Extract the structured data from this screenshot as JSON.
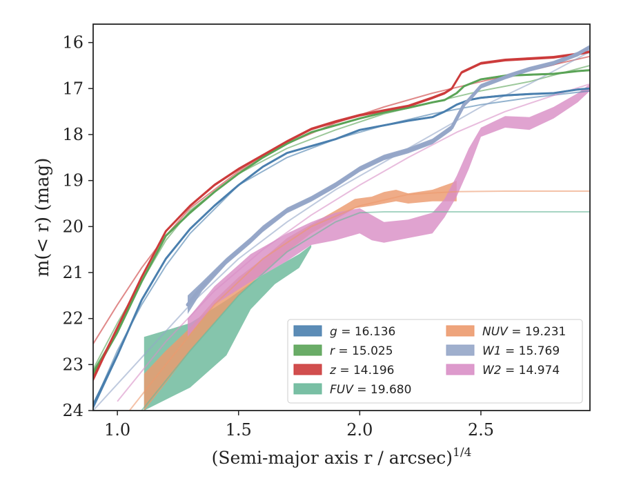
{
  "chart_data": {
    "type": "line",
    "title": "",
    "xlabel": "(Semi-major axis r / arcsec)",
    "xlabel_superscript": "1/4",
    "ylabel": "m(< r) (mag)",
    "xlim": [
      0.9,
      2.95
    ],
    "ylim": [
      24,
      15.6
    ],
    "y_inverted": true,
    "grid": false,
    "legend_position": "lower-right",
    "x_ticks": [
      1.0,
      1.5,
      2.0,
      2.5
    ],
    "x_tick_labels": [
      "1.0",
      "1.5",
      "2.0",
      "2.5"
    ],
    "y_ticks": [
      16,
      17,
      18,
      19,
      20,
      21,
      22,
      23,
      24
    ],
    "y_tick_labels": [
      "16",
      "17",
      "18",
      "19",
      "20",
      "21",
      "22",
      "23",
      "24"
    ],
    "series": [
      {
        "name": "g = 16.136",
        "label": "g",
        "value": "16.136",
        "color": "#4a7fae",
        "data": [
          [
            0.9,
            23.9
          ],
          [
            1.0,
            22.8
          ],
          [
            1.1,
            21.6
          ],
          [
            1.2,
            20.7
          ],
          [
            1.3,
            20.05
          ],
          [
            1.4,
            19.55
          ],
          [
            1.5,
            19.1
          ],
          [
            1.6,
            18.7
          ],
          [
            1.7,
            18.4
          ],
          [
            1.8,
            18.25
          ],
          [
            1.9,
            18.1
          ],
          [
            2.0,
            17.9
          ],
          [
            2.1,
            17.8
          ],
          [
            2.2,
            17.7
          ],
          [
            2.3,
            17.62
          ],
          [
            2.35,
            17.5
          ],
          [
            2.4,
            17.35
          ],
          [
            2.45,
            17.25
          ],
          [
            2.5,
            17.2
          ],
          [
            2.6,
            17.15
          ],
          [
            2.7,
            17.12
          ],
          [
            2.8,
            17.1
          ],
          [
            2.9,
            17.02
          ],
          [
            2.95,
            17.0
          ]
        ],
        "halfwidth": [
          0.08,
          0.05,
          0.04,
          0.03,
          0.03,
          0.02,
          0.02,
          0.02,
          0.02,
          0.02,
          0.02,
          0.02,
          0.02,
          0.02,
          0.02,
          0.02,
          0.02,
          0.02,
          0.02,
          0.02,
          0.02,
          0.02,
          0.02,
          0.02
        ],
        "model": [
          [
            0.9,
            23.9
          ],
          [
            1.0,
            22.7
          ],
          [
            1.1,
            21.7
          ],
          [
            1.2,
            20.85
          ],
          [
            1.3,
            20.15
          ],
          [
            1.5,
            19.1
          ],
          [
            1.7,
            18.5
          ],
          [
            1.9,
            18.1
          ],
          [
            2.1,
            17.8
          ],
          [
            2.3,
            17.55
          ],
          [
            2.5,
            17.35
          ],
          [
            2.7,
            17.2
          ],
          [
            2.95,
            17.05
          ]
        ]
      },
      {
        "name": "r = 15.025",
        "label": "r",
        "value": "15.025",
        "color": "#5aa356",
        "data": [
          [
            0.9,
            23.2
          ],
          [
            1.0,
            22.3
          ],
          [
            1.1,
            21.2
          ],
          [
            1.2,
            20.2
          ],
          [
            1.3,
            19.7
          ],
          [
            1.4,
            19.25
          ],
          [
            1.5,
            18.85
          ],
          [
            1.6,
            18.5
          ],
          [
            1.7,
            18.2
          ],
          [
            1.8,
            17.95
          ],
          [
            1.9,
            17.8
          ],
          [
            2.0,
            17.65
          ],
          [
            2.1,
            17.52
          ],
          [
            2.2,
            17.42
          ],
          [
            2.3,
            17.3
          ],
          [
            2.35,
            17.25
          ],
          [
            2.4,
            17.1
          ],
          [
            2.43,
            16.95
          ],
          [
            2.5,
            16.8
          ],
          [
            2.6,
            16.72
          ],
          [
            2.7,
            16.7
          ],
          [
            2.8,
            16.68
          ],
          [
            2.9,
            16.62
          ],
          [
            2.95,
            16.6
          ]
        ],
        "halfwidth": [
          0.08,
          0.05,
          0.04,
          0.03,
          0.03,
          0.02,
          0.02,
          0.02,
          0.02,
          0.02,
          0.02,
          0.02,
          0.02,
          0.02,
          0.02,
          0.02,
          0.02,
          0.02,
          0.02,
          0.02,
          0.02,
          0.02,
          0.02,
          0.02
        ],
        "model": [
          [
            0.9,
            23.1
          ],
          [
            1.0,
            22.1
          ],
          [
            1.1,
            21.2
          ],
          [
            1.2,
            20.3
          ],
          [
            1.3,
            19.65
          ],
          [
            1.5,
            18.85
          ],
          [
            1.7,
            18.3
          ],
          [
            1.9,
            17.9
          ],
          [
            2.1,
            17.55
          ],
          [
            2.3,
            17.3
          ],
          [
            2.5,
            17.05
          ],
          [
            2.7,
            16.85
          ],
          [
            2.95,
            16.5
          ]
        ]
      },
      {
        "name": "z = 14.196",
        "label": "z",
        "value": "14.196",
        "color": "#cc3b3b",
        "data": [
          [
            0.9,
            23.3
          ],
          [
            1.0,
            22.2
          ],
          [
            1.1,
            21.1
          ],
          [
            1.2,
            20.1
          ],
          [
            1.3,
            19.55
          ],
          [
            1.4,
            19.1
          ],
          [
            1.5,
            18.75
          ],
          [
            1.6,
            18.45
          ],
          [
            1.7,
            18.15
          ],
          [
            1.8,
            17.88
          ],
          [
            1.9,
            17.72
          ],
          [
            2.0,
            17.58
          ],
          [
            2.1,
            17.48
          ],
          [
            2.2,
            17.38
          ],
          [
            2.3,
            17.2
          ],
          [
            2.35,
            17.1
          ],
          [
            2.38,
            17.0
          ],
          [
            2.42,
            16.65
          ],
          [
            2.5,
            16.45
          ],
          [
            2.6,
            16.38
          ],
          [
            2.7,
            16.35
          ],
          [
            2.8,
            16.32
          ],
          [
            2.9,
            16.25
          ],
          [
            2.95,
            16.2
          ]
        ],
        "halfwidth": [
          0.08,
          0.05,
          0.04,
          0.03,
          0.03,
          0.03,
          0.03,
          0.03,
          0.03,
          0.03,
          0.03,
          0.03,
          0.03,
          0.03,
          0.03,
          0.03,
          0.03,
          0.03,
          0.03,
          0.03,
          0.03,
          0.03,
          0.03,
          0.03
        ],
        "model": [
          [
            0.9,
            22.55
          ],
          [
            1.0,
            21.7
          ],
          [
            1.1,
            20.9
          ],
          [
            1.2,
            20.2
          ],
          [
            1.3,
            19.6
          ],
          [
            1.5,
            18.8
          ],
          [
            1.7,
            18.2
          ],
          [
            1.9,
            17.75
          ],
          [
            2.1,
            17.4
          ],
          [
            2.3,
            17.1
          ],
          [
            2.5,
            16.85
          ],
          [
            2.7,
            16.6
          ],
          [
            2.95,
            16.3
          ]
        ]
      },
      {
        "name": "FUV = 19.680",
        "label": "FUV",
        "value": "19.680",
        "color": "#6ab89a",
        "upper": [
          [
            1.11,
            22.4
          ],
          [
            1.3,
            22.1
          ],
          [
            1.45,
            21.6
          ],
          [
            1.6,
            21.05
          ],
          [
            1.75,
            20.6
          ],
          [
            1.8,
            20.4
          ]
        ],
        "lower": [
          [
            1.11,
            24.0
          ],
          [
            1.3,
            23.5
          ],
          [
            1.45,
            22.8
          ],
          [
            1.55,
            21.8
          ],
          [
            1.65,
            21.25
          ],
          [
            1.75,
            20.9
          ],
          [
            1.8,
            20.45
          ]
        ],
        "model": [
          [
            1.1,
            24.0
          ],
          [
            1.3,
            22.7
          ],
          [
            1.5,
            21.5
          ],
          [
            1.7,
            20.55
          ],
          [
            1.9,
            19.9
          ],
          [
            2.0,
            19.7
          ],
          [
            2.1,
            19.68
          ],
          [
            2.5,
            19.68
          ],
          [
            2.95,
            19.68
          ]
        ]
      },
      {
        "name": "NUV = 19.231",
        "label": "NUV",
        "value": "19.231",
        "color": "#ec9a6e",
        "upper": [
          [
            1.11,
            23.2
          ],
          [
            1.2,
            22.7
          ],
          [
            1.3,
            22.2
          ],
          [
            1.4,
            21.6
          ],
          [
            1.5,
            21.1
          ],
          [
            1.6,
            20.7
          ],
          [
            1.7,
            20.25
          ],
          [
            1.8,
            19.95
          ],
          [
            1.9,
            19.65
          ],
          [
            1.98,
            19.4
          ],
          [
            2.05,
            19.35
          ],
          [
            2.1,
            19.25
          ],
          [
            2.15,
            19.2
          ],
          [
            2.2,
            19.28
          ],
          [
            2.3,
            19.2
          ],
          [
            2.38,
            19.05
          ],
          [
            2.4,
            19.0
          ]
        ],
        "lower": [
          [
            1.11,
            24.0
          ],
          [
            1.2,
            23.4
          ],
          [
            1.3,
            22.7
          ],
          [
            1.4,
            22.1
          ],
          [
            1.5,
            21.5
          ],
          [
            1.6,
            21.0
          ],
          [
            1.7,
            20.55
          ],
          [
            1.8,
            20.15
          ],
          [
            1.9,
            19.85
          ],
          [
            1.98,
            19.6
          ],
          [
            2.05,
            19.55
          ],
          [
            2.1,
            19.5
          ],
          [
            2.15,
            19.45
          ],
          [
            2.2,
            19.5
          ],
          [
            2.3,
            19.45
          ],
          [
            2.38,
            19.45
          ],
          [
            2.4,
            19.45
          ]
        ],
        "model": [
          [
            1.05,
            24.0
          ],
          [
            1.2,
            23.0
          ],
          [
            1.4,
            21.7
          ],
          [
            1.6,
            20.7
          ],
          [
            1.8,
            20.0
          ],
          [
            2.0,
            19.55
          ],
          [
            2.2,
            19.3
          ],
          [
            2.4,
            19.24
          ],
          [
            2.6,
            19.23
          ],
          [
            2.95,
            19.23
          ]
        ]
      },
      {
        "name": "W1 = 15.769",
        "label": "W1",
        "value": "15.769",
        "color": "#95a6c8",
        "data": [
          [
            1.29,
            21.7
          ],
          [
            1.35,
            21.3
          ],
          [
            1.45,
            20.75
          ],
          [
            1.55,
            20.3
          ],
          [
            1.6,
            20.05
          ],
          [
            1.7,
            19.65
          ],
          [
            1.8,
            19.4
          ],
          [
            1.9,
            19.1
          ],
          [
            2.0,
            18.75
          ],
          [
            2.1,
            18.5
          ],
          [
            2.2,
            18.35
          ],
          [
            2.3,
            18.15
          ],
          [
            2.38,
            17.85
          ],
          [
            2.43,
            17.35
          ],
          [
            2.45,
            17.25
          ],
          [
            2.5,
            16.95
          ],
          [
            2.6,
            16.75
          ],
          [
            2.7,
            16.58
          ],
          [
            2.8,
            16.45
          ],
          [
            2.9,
            16.25
          ],
          [
            2.95,
            16.1
          ]
        ],
        "halfwidth": [
          0.2,
          0.1,
          0.07,
          0.07,
          0.07,
          0.06,
          0.06,
          0.06,
          0.06,
          0.06,
          0.06,
          0.06,
          0.06,
          0.05,
          0.05,
          0.05,
          0.05,
          0.05,
          0.05,
          0.05,
          0.05
        ],
        "model": [
          [
            0.9,
            24.0
          ],
          [
            1.1,
            22.85
          ],
          [
            1.3,
            21.7
          ],
          [
            1.5,
            20.7
          ],
          [
            1.7,
            19.9
          ],
          [
            1.9,
            19.2
          ],
          [
            2.1,
            18.6
          ],
          [
            2.3,
            18.0
          ],
          [
            2.5,
            17.4
          ],
          [
            2.7,
            16.9
          ],
          [
            2.95,
            16.2
          ]
        ]
      },
      {
        "name": "W2 = 14.974",
        "label": "W2",
        "value": "14.974",
        "color": "#d98fc6",
        "upper": [
          [
            1.29,
            22.0
          ],
          [
            1.4,
            21.3
          ],
          [
            1.55,
            20.6
          ],
          [
            1.7,
            20.15
          ],
          [
            1.8,
            19.9
          ],
          [
            1.9,
            19.7
          ],
          [
            2.0,
            19.6
          ],
          [
            2.05,
            19.75
          ],
          [
            2.1,
            19.9
          ],
          [
            2.2,
            19.85
          ],
          [
            2.3,
            19.7
          ],
          [
            2.35,
            19.4
          ],
          [
            2.4,
            18.9
          ],
          [
            2.45,
            18.3
          ],
          [
            2.5,
            17.85
          ],
          [
            2.6,
            17.6
          ],
          [
            2.7,
            17.62
          ],
          [
            2.8,
            17.4
          ],
          [
            2.9,
            17.1
          ],
          [
            2.95,
            16.9
          ]
        ],
        "lower": [
          [
            1.29,
            22.4
          ],
          [
            1.4,
            21.7
          ],
          [
            1.55,
            21.2
          ],
          [
            1.7,
            20.75
          ],
          [
            1.8,
            20.4
          ],
          [
            1.9,
            20.3
          ],
          [
            2.0,
            20.15
          ],
          [
            2.05,
            20.3
          ],
          [
            2.1,
            20.35
          ],
          [
            2.2,
            20.25
          ],
          [
            2.3,
            20.15
          ],
          [
            2.35,
            19.8
          ],
          [
            2.4,
            19.35
          ],
          [
            2.45,
            18.75
          ],
          [
            2.5,
            18.05
          ],
          [
            2.6,
            17.85
          ],
          [
            2.7,
            17.9
          ],
          [
            2.8,
            17.65
          ],
          [
            2.9,
            17.3
          ],
          [
            2.95,
            17.05
          ]
        ],
        "model": [
          [
            1.0,
            23.8
          ],
          [
            1.2,
            22.5
          ],
          [
            1.4,
            21.4
          ],
          [
            1.6,
            20.5
          ],
          [
            1.8,
            19.75
          ],
          [
            2.0,
            19.1
          ],
          [
            2.2,
            18.5
          ],
          [
            2.4,
            17.95
          ],
          [
            2.6,
            17.5
          ],
          [
            2.8,
            17.15
          ],
          [
            2.95,
            16.9
          ]
        ]
      }
    ]
  }
}
